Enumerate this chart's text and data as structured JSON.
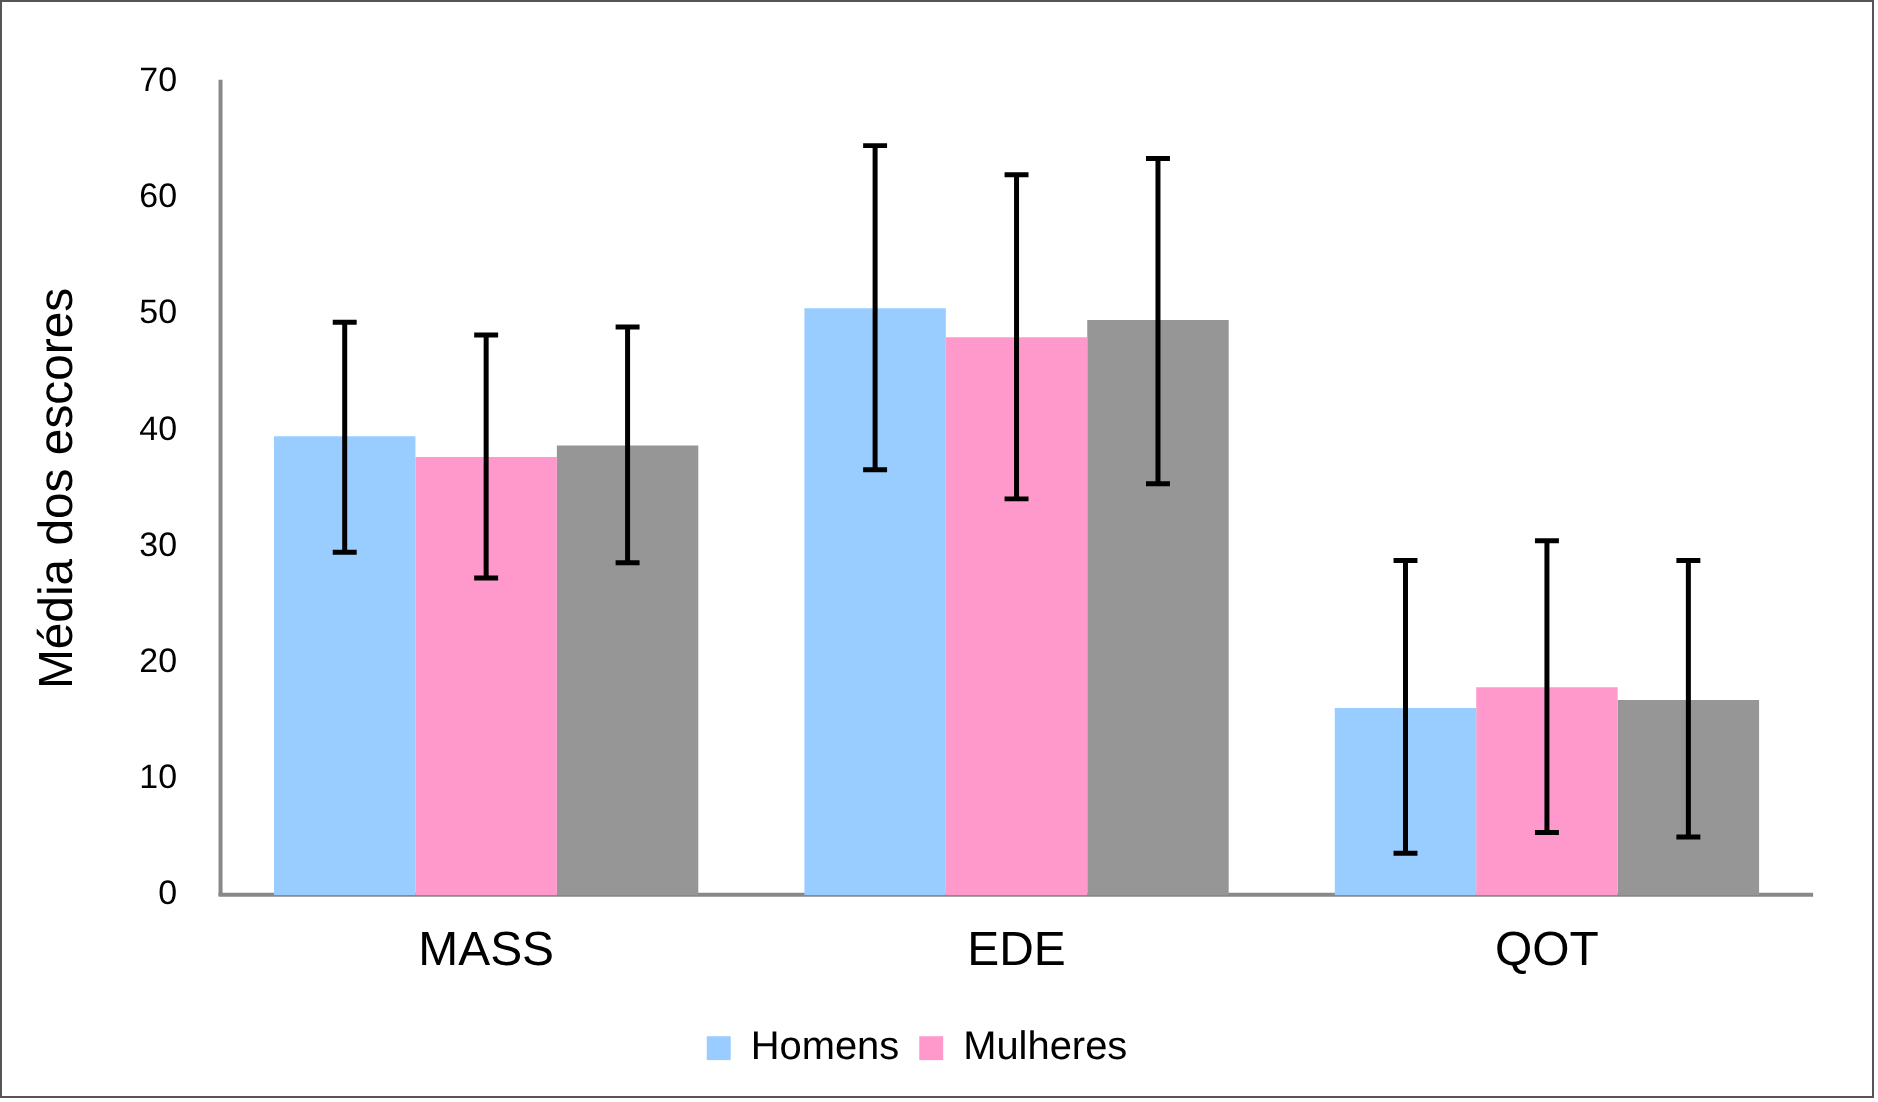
{
  "chart_data": {
    "type": "bar",
    "ylabel": "Média dos escores",
    "categories": [
      "MASS",
      "EDE",
      "QOT"
    ],
    "series": [
      {
        "name": "Homens",
        "color": "#99ccff",
        "values": [
          39.5,
          50.5,
          16.1
        ],
        "errors": [
          [
            29.5,
            49.3
          ],
          [
            36.6,
            64.5
          ],
          [
            3.6,
            28.8
          ]
        ]
      },
      {
        "name": "Mulheres",
        "color": "#ff99cc",
        "values": [
          37.7,
          48.0,
          17.9
        ],
        "errors": [
          [
            27.3,
            48.2
          ],
          [
            34.1,
            62.0
          ],
          [
            5.4,
            30.5
          ]
        ]
      },
      {
        "color": "#969696",
        "values": [
          38.7,
          49.5,
          16.8
        ],
        "errors": [
          [
            28.6,
            48.9
          ],
          [
            35.4,
            63.4
          ],
          [
            5.0,
            28.8
          ]
        ]
      }
    ],
    "ylim": [
      0,
      70
    ],
    "yticks": [
      0,
      10,
      20,
      30,
      40,
      50,
      60,
      70
    ],
    "grid": false,
    "legend": "bottom"
  }
}
